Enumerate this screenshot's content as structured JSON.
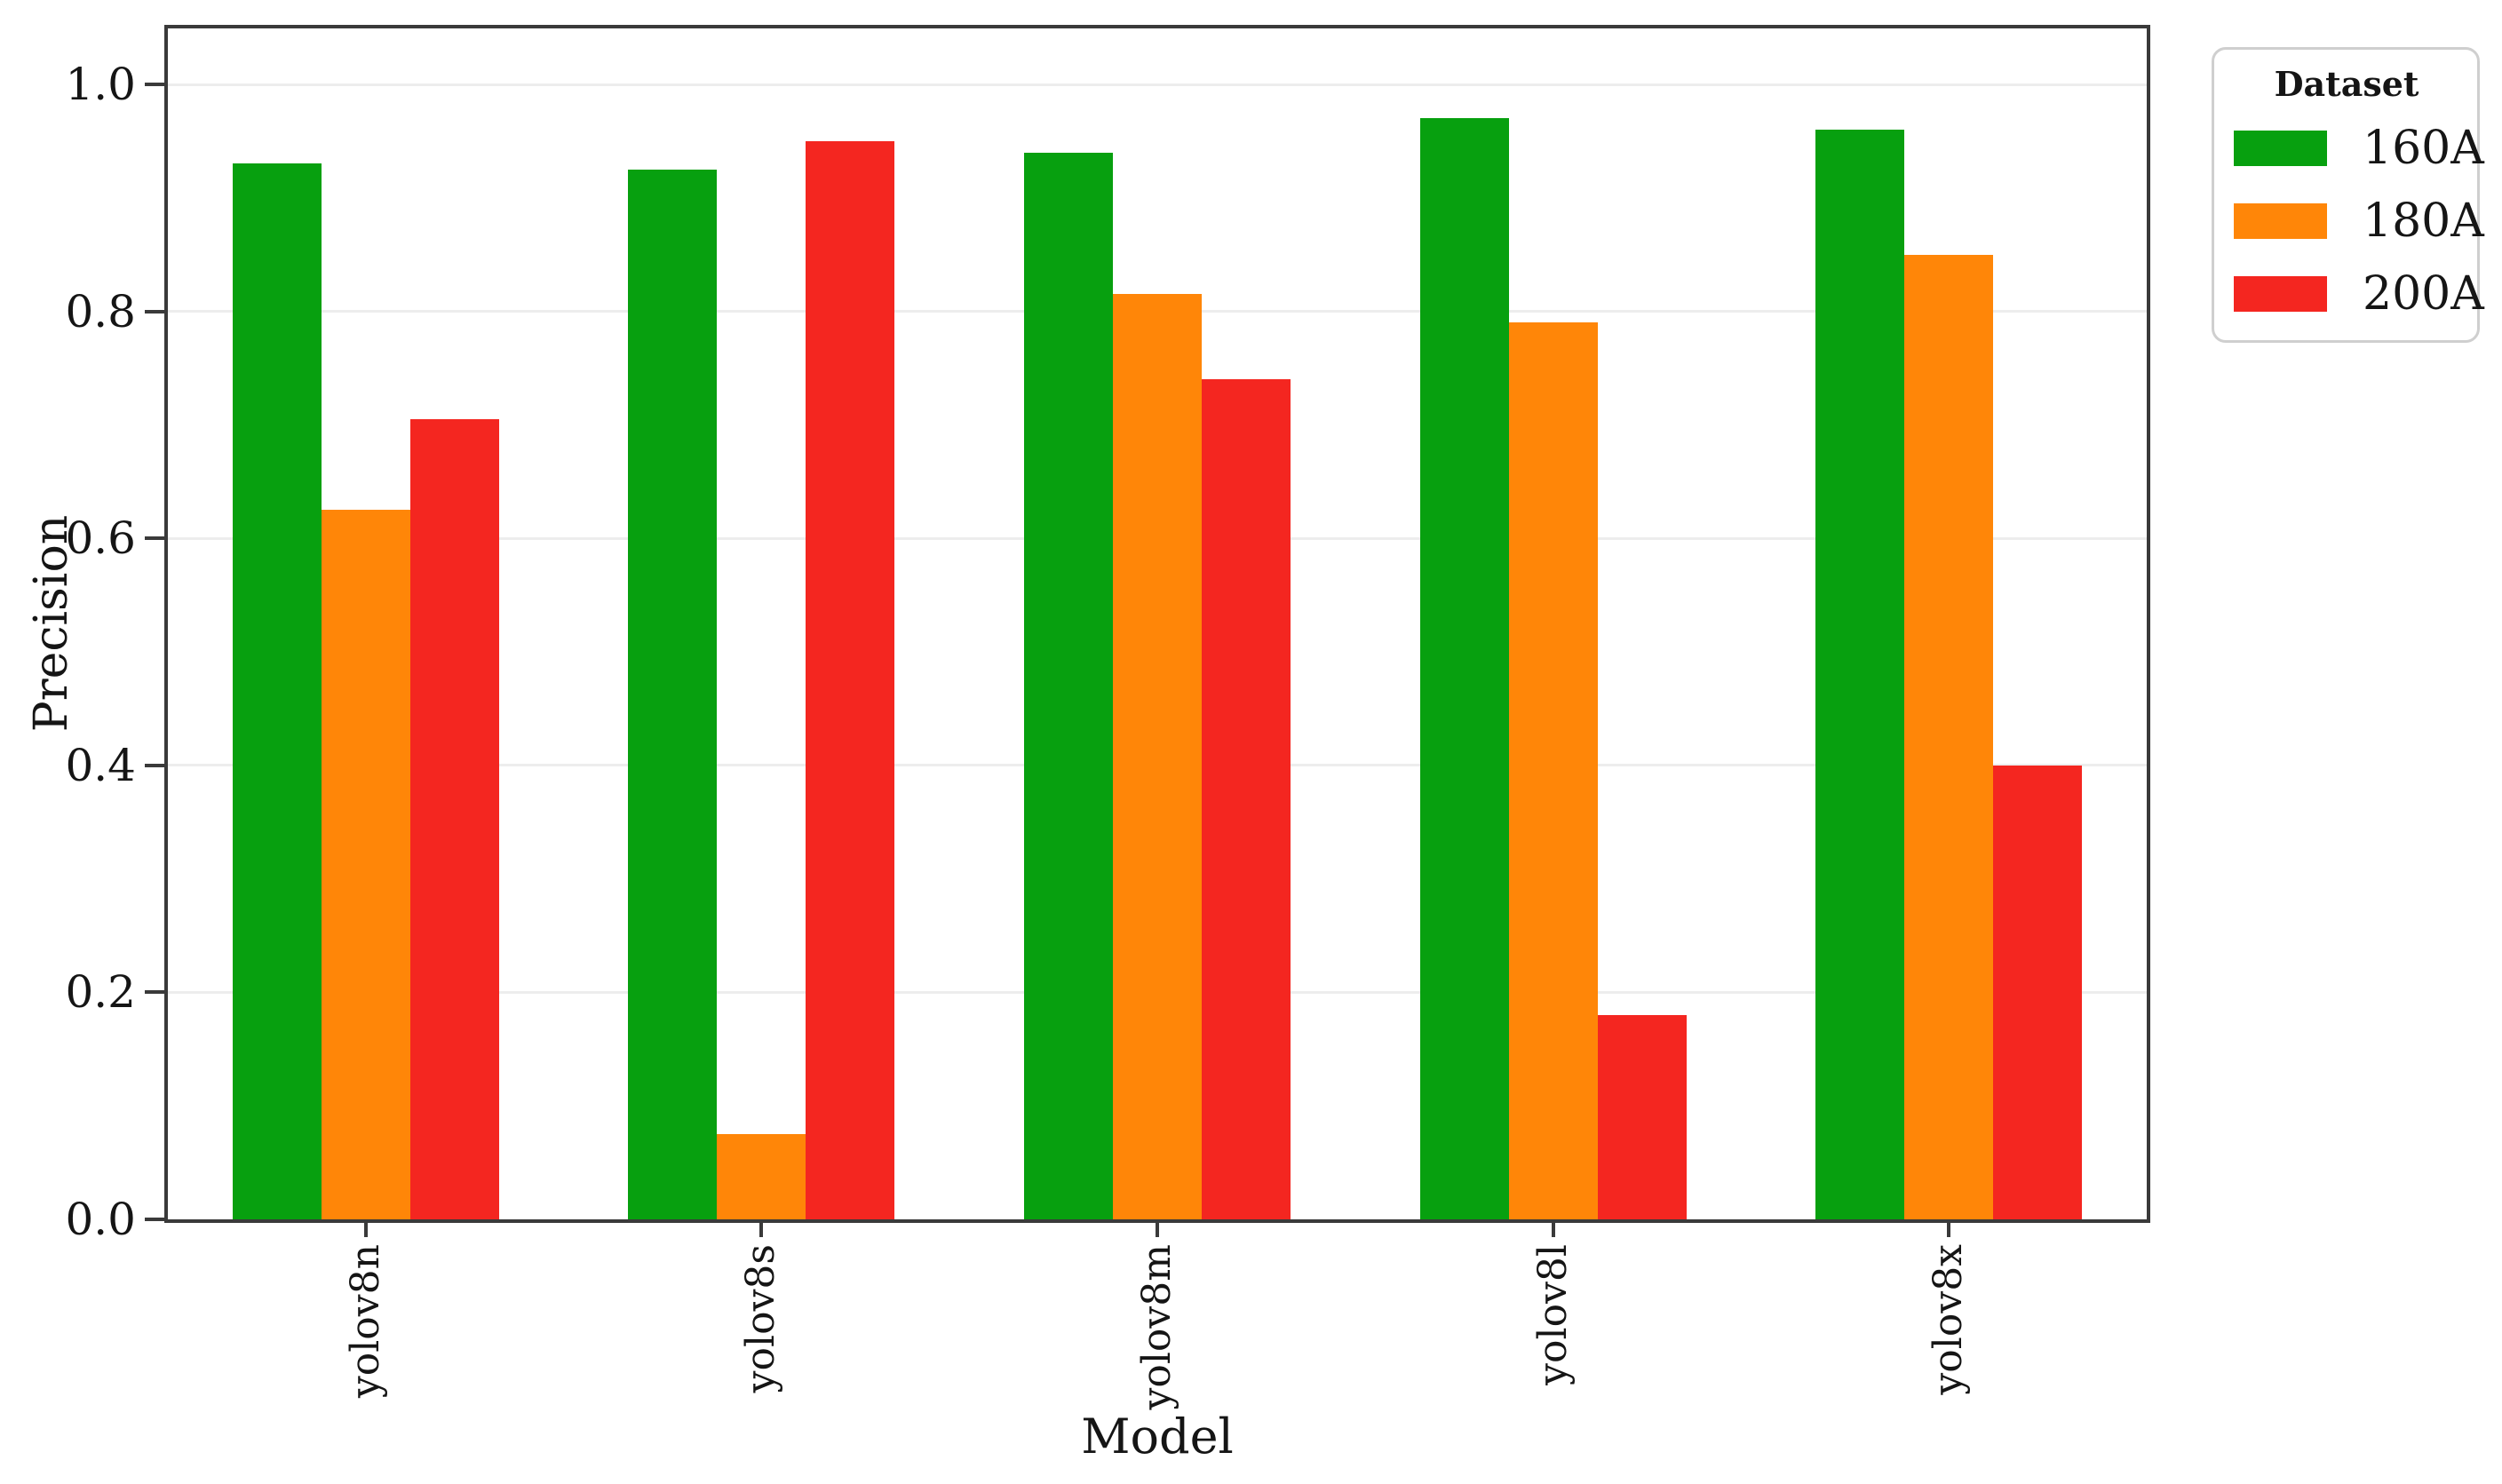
{
  "chart_data": {
    "type": "bar",
    "categories": [
      "yolov8n",
      "yolov8s",
      "yolov8m",
      "yolov8l",
      "yolov8x"
    ],
    "series": [
      {
        "name": "160A",
        "color": "#07a00f",
        "values": [
          0.93,
          0.925,
          0.94,
          0.97,
          0.96
        ]
      },
      {
        "name": "180A",
        "color": "#ff8608",
        "values": [
          0.625,
          0.075,
          0.815,
          0.79,
          0.85
        ]
      },
      {
        "name": "200A",
        "color": "#f42620",
        "values": [
          0.705,
          0.95,
          0.74,
          0.18,
          0.4
        ]
      }
    ],
    "xlabel": "Model",
    "ylabel": "Precision",
    "ylim": [
      0.0,
      1.05
    ],
    "yticks": [
      0.0,
      0.2,
      0.4,
      0.6,
      0.8,
      1.0
    ],
    "ytick_labels": [
      "0.0",
      "0.2",
      "0.4",
      "0.6",
      "0.8",
      "1.0"
    ],
    "grid": "horizontal",
    "legend": {
      "title": "Dataset",
      "position": "outside-upper-right"
    }
  },
  "style": {
    "spine_color": "#3a3a3a",
    "grid_color": "#ededed",
    "legend_border_color": "#cfcfcf",
    "text_color": "#151515",
    "background": "#ffffff"
  }
}
